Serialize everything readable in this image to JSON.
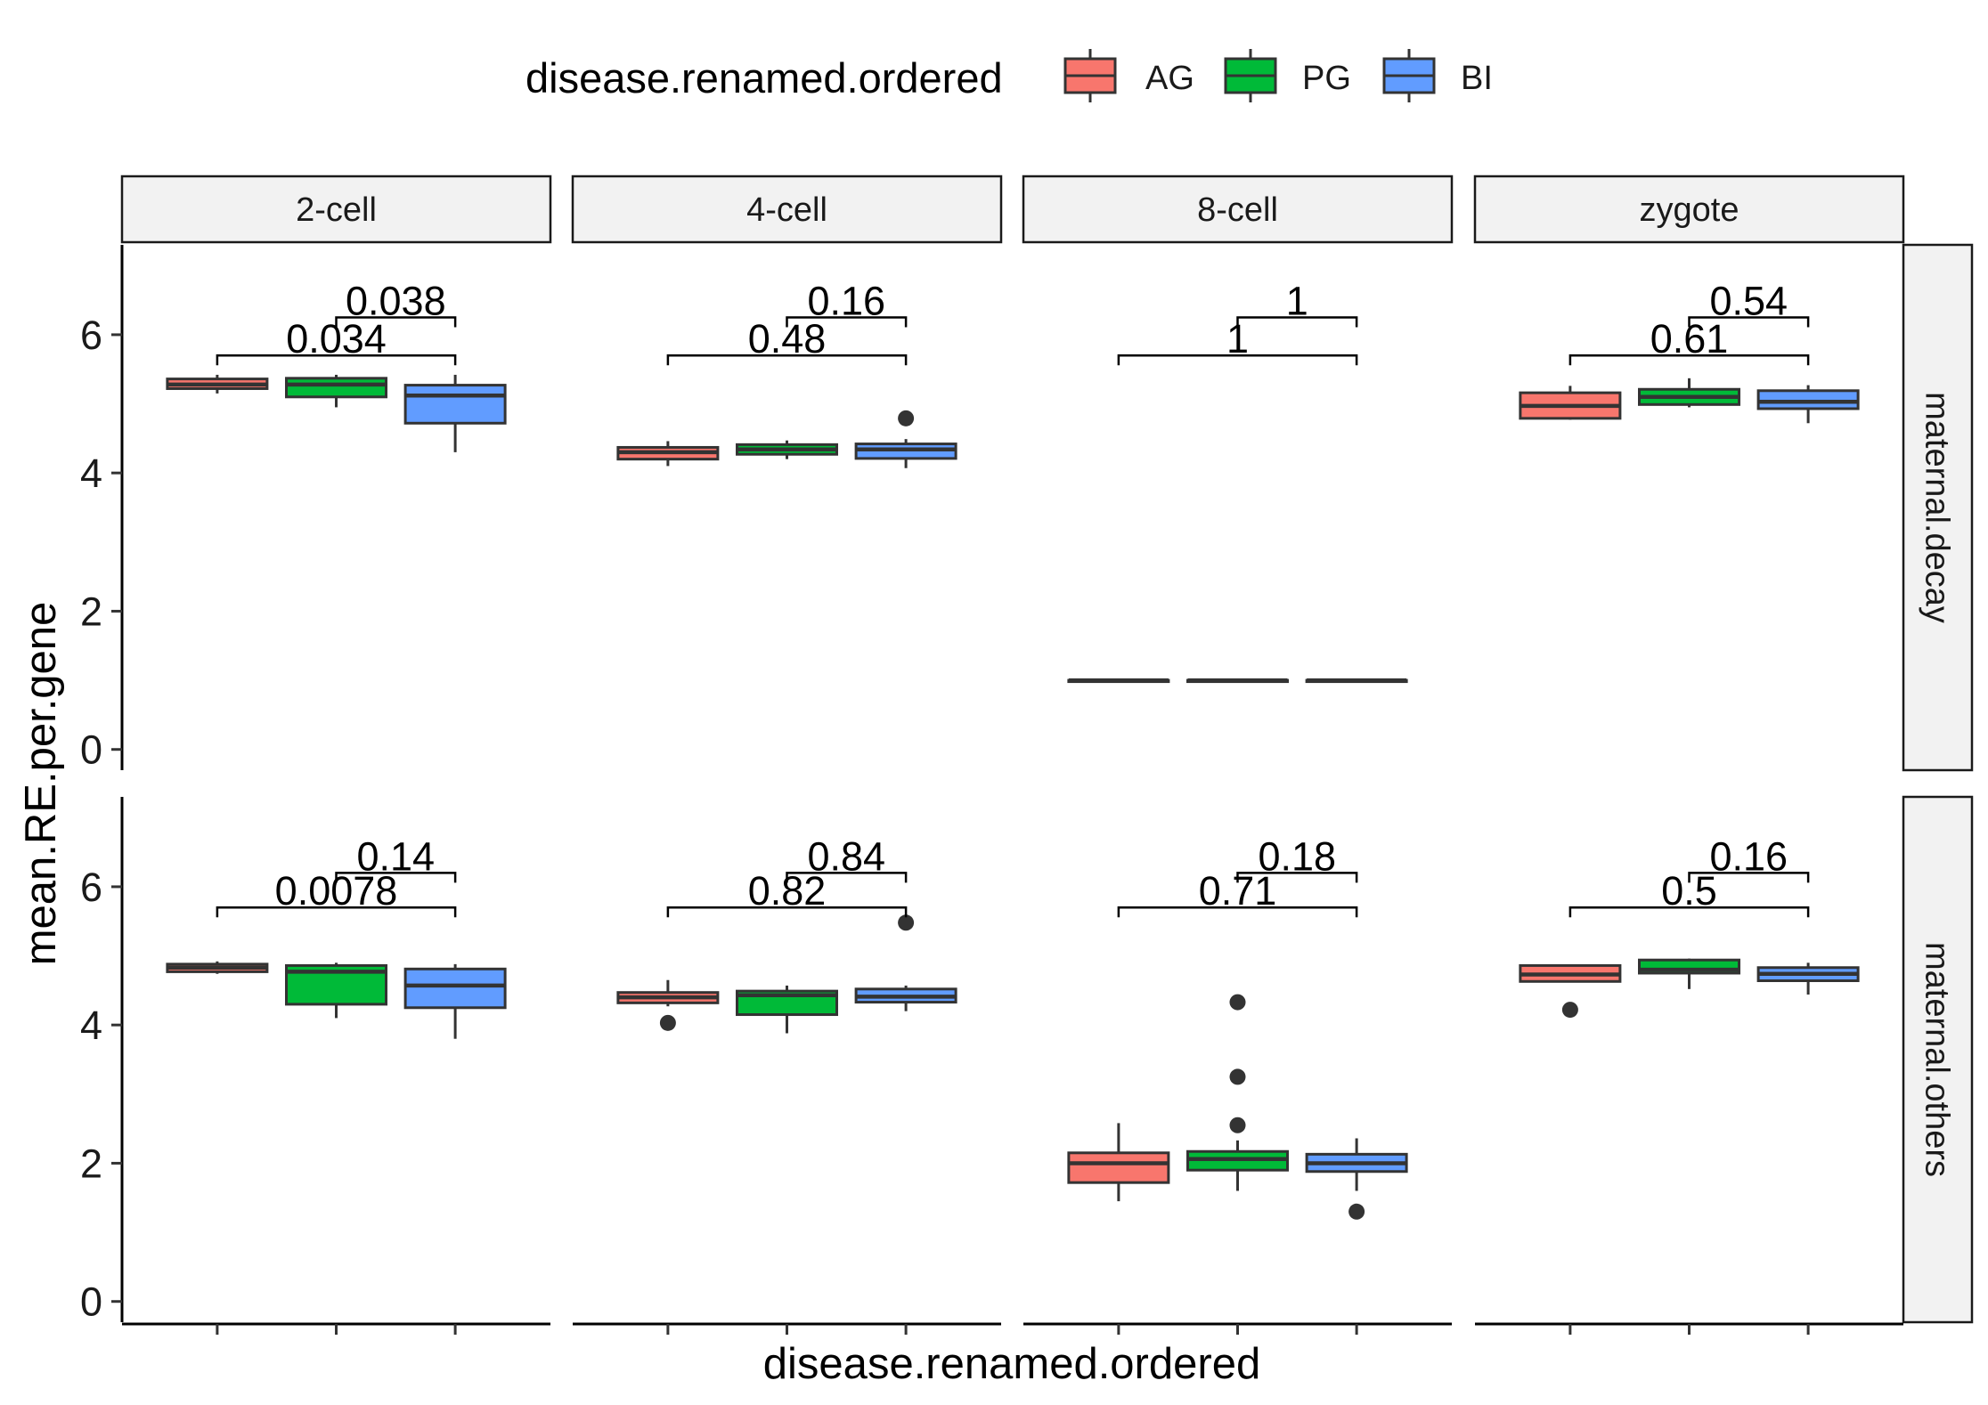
{
  "chart_data": {
    "type": "boxplot",
    "xlabel": "disease.renamed.ordered",
    "ylabel": "mean.RE.per.gene",
    "ylim": [
      -0.3,
      7.3
    ],
    "yticks": [
      "0",
      "2",
      "4",
      "6"
    ],
    "legend": {
      "title": "disease.renamed.ordered",
      "position": "top",
      "entries": [
        {
          "label": "AG",
          "color": "#F8766D"
        },
        {
          "label": "PG",
          "color": "#00BA38"
        },
        {
          "label": "BI",
          "color": "#619CFF"
        }
      ]
    },
    "columns": [
      "2-cell",
      "4-cell",
      "8-cell",
      "zygote"
    ],
    "rows": [
      "maternal.decay",
      "maternal.others"
    ],
    "categories": [
      "AG",
      "PG",
      "BI"
    ],
    "panels": [
      {
        "row": "maternal.decay",
        "column": "2-cell",
        "boxes": [
          {
            "group": "AG",
            "min": 5.15,
            "q1": 5.22,
            "median": 5.28,
            "q3": 5.36,
            "max": 5.42,
            "outliers": []
          },
          {
            "group": "PG",
            "min": 4.95,
            "q1": 5.1,
            "median": 5.28,
            "q3": 5.37,
            "max": 5.42,
            "outliers": []
          },
          {
            "group": "BI",
            "min": 4.3,
            "q1": 4.72,
            "median": 5.12,
            "q3": 5.27,
            "max": 5.42,
            "outliers": []
          }
        ],
        "comparisons": [
          {
            "pair": [
              "AG",
              "BI"
            ],
            "p": "0.034",
            "y": 5.7
          },
          {
            "pair": [
              "PG",
              "BI"
            ],
            "p": "0.038",
            "y": 6.25
          }
        ]
      },
      {
        "row": "maternal.decay",
        "column": "4-cell",
        "boxes": [
          {
            "group": "AG",
            "min": 4.1,
            "q1": 4.2,
            "median": 4.3,
            "q3": 4.37,
            "max": 4.46,
            "outliers": []
          },
          {
            "group": "PG",
            "min": 4.2,
            "q1": 4.27,
            "median": 4.34,
            "q3": 4.41,
            "max": 4.47,
            "outliers": []
          },
          {
            "group": "BI",
            "min": 4.07,
            "q1": 4.21,
            "median": 4.34,
            "q3": 4.42,
            "max": 4.49,
            "outliers": [
              4.79
            ]
          }
        ],
        "comparisons": [
          {
            "pair": [
              "AG",
              "BI"
            ],
            "p": "0.48",
            "y": 5.7
          },
          {
            "pair": [
              "PG",
              "BI"
            ],
            "p": "0.16",
            "y": 6.25
          }
        ]
      },
      {
        "row": "maternal.decay",
        "column": "8-cell",
        "boxes": [
          {
            "group": "AG",
            "min": 1.0,
            "q1": 1.0,
            "median": 1.0,
            "q3": 1.0,
            "max": 1.0,
            "outliers": []
          },
          {
            "group": "PG",
            "min": 1.0,
            "q1": 1.0,
            "median": 1.0,
            "q3": 1.0,
            "max": 1.0,
            "outliers": []
          },
          {
            "group": "BI",
            "min": 1.0,
            "q1": 1.0,
            "median": 1.0,
            "q3": 1.0,
            "max": 1.0,
            "outliers": []
          }
        ],
        "comparisons": [
          {
            "pair": [
              "AG",
              "BI"
            ],
            "p": "1",
            "y": 5.7
          },
          {
            "pair": [
              "PG",
              "BI"
            ],
            "p": "1",
            "y": 6.25
          }
        ]
      },
      {
        "row": "maternal.decay",
        "column": "zygote",
        "boxes": [
          {
            "group": "AG",
            "min": 4.77,
            "q1": 4.79,
            "median": 4.97,
            "q3": 5.16,
            "max": 5.26,
            "outliers": []
          },
          {
            "group": "PG",
            "min": 4.95,
            "q1": 4.99,
            "median": 5.1,
            "q3": 5.21,
            "max": 5.37,
            "outliers": []
          },
          {
            "group": "BI",
            "min": 4.72,
            "q1": 4.93,
            "median": 5.03,
            "q3": 5.19,
            "max": 5.27,
            "outliers": []
          }
        ],
        "comparisons": [
          {
            "pair": [
              "AG",
              "BI"
            ],
            "p": "0.61",
            "y": 5.7
          },
          {
            "pair": [
              "PG",
              "BI"
            ],
            "p": "0.54",
            "y": 6.25
          }
        ]
      },
      {
        "row": "maternal.others",
        "column": "2-cell",
        "boxes": [
          {
            "group": "AG",
            "min": 4.74,
            "q1": 4.77,
            "median": 4.83,
            "q3": 4.88,
            "max": 4.92,
            "outliers": []
          },
          {
            "group": "PG",
            "min": 4.1,
            "q1": 4.3,
            "median": 4.77,
            "q3": 4.86,
            "max": 4.9,
            "outliers": []
          },
          {
            "group": "BI",
            "min": 3.8,
            "q1": 4.25,
            "median": 4.57,
            "q3": 4.81,
            "max": 4.88,
            "outliers": []
          }
        ],
        "comparisons": [
          {
            "pair": [
              "AG",
              "BI"
            ],
            "p": "0.0078",
            "y": 5.7
          },
          {
            "pair": [
              "PG",
              "BI"
            ],
            "p": "0.14",
            "y": 6.2
          }
        ]
      },
      {
        "row": "maternal.others",
        "column": "4-cell",
        "boxes": [
          {
            "group": "AG",
            "min": 4.27,
            "q1": 4.32,
            "median": 4.4,
            "q3": 4.47,
            "max": 4.65,
            "outliers": [
              4.03
            ]
          },
          {
            "group": "PG",
            "min": 3.88,
            "q1": 4.15,
            "median": 4.43,
            "q3": 4.49,
            "max": 4.57,
            "outliers": []
          },
          {
            "group": "BI",
            "min": 4.2,
            "q1": 4.33,
            "median": 4.41,
            "q3": 4.52,
            "max": 4.57,
            "outliers": [
              5.48
            ]
          }
        ],
        "comparisons": [
          {
            "pair": [
              "AG",
              "BI"
            ],
            "p": "0.82",
            "y": 5.7
          },
          {
            "pair": [
              "PG",
              "BI"
            ],
            "p": "0.84",
            "y": 6.2
          }
        ]
      },
      {
        "row": "maternal.others",
        "column": "8-cell",
        "boxes": [
          {
            "group": "AG",
            "min": 1.45,
            "q1": 1.72,
            "median": 2.0,
            "q3": 2.15,
            "max": 2.58,
            "outliers": []
          },
          {
            "group": "PG",
            "min": 1.6,
            "q1": 1.9,
            "median": 2.06,
            "q3": 2.17,
            "max": 2.33,
            "outliers": [
              4.33,
              3.25,
              2.55
            ]
          },
          {
            "group": "BI",
            "min": 1.6,
            "q1": 1.88,
            "median": 2.0,
            "q3": 2.13,
            "max": 2.36,
            "outliers": [
              1.3
            ]
          }
        ],
        "comparisons": [
          {
            "pair": [
              "AG",
              "BI"
            ],
            "p": "0.71",
            "y": 5.7
          },
          {
            "pair": [
              "PG",
              "BI"
            ],
            "p": "0.18",
            "y": 6.2
          }
        ]
      },
      {
        "row": "maternal.others",
        "column": "zygote",
        "boxes": [
          {
            "group": "AG",
            "min": 4.62,
            "q1": 4.63,
            "median": 4.73,
            "q3": 4.86,
            "max": 4.87,
            "outliers": [
              4.22
            ]
          },
          {
            "group": "PG",
            "min": 4.52,
            "q1": 4.75,
            "median": 4.8,
            "q3": 4.94,
            "max": 4.96,
            "outliers": []
          },
          {
            "group": "BI",
            "min": 4.44,
            "q1": 4.64,
            "median": 4.74,
            "q3": 4.83,
            "max": 4.9,
            "outliers": []
          }
        ],
        "comparisons": [
          {
            "pair": [
              "AG",
              "BI"
            ],
            "p": "0.5",
            "y": 5.7
          },
          {
            "pair": [
              "PG",
              "BI"
            ],
            "p": "0.16",
            "y": 6.2
          }
        ]
      }
    ]
  }
}
